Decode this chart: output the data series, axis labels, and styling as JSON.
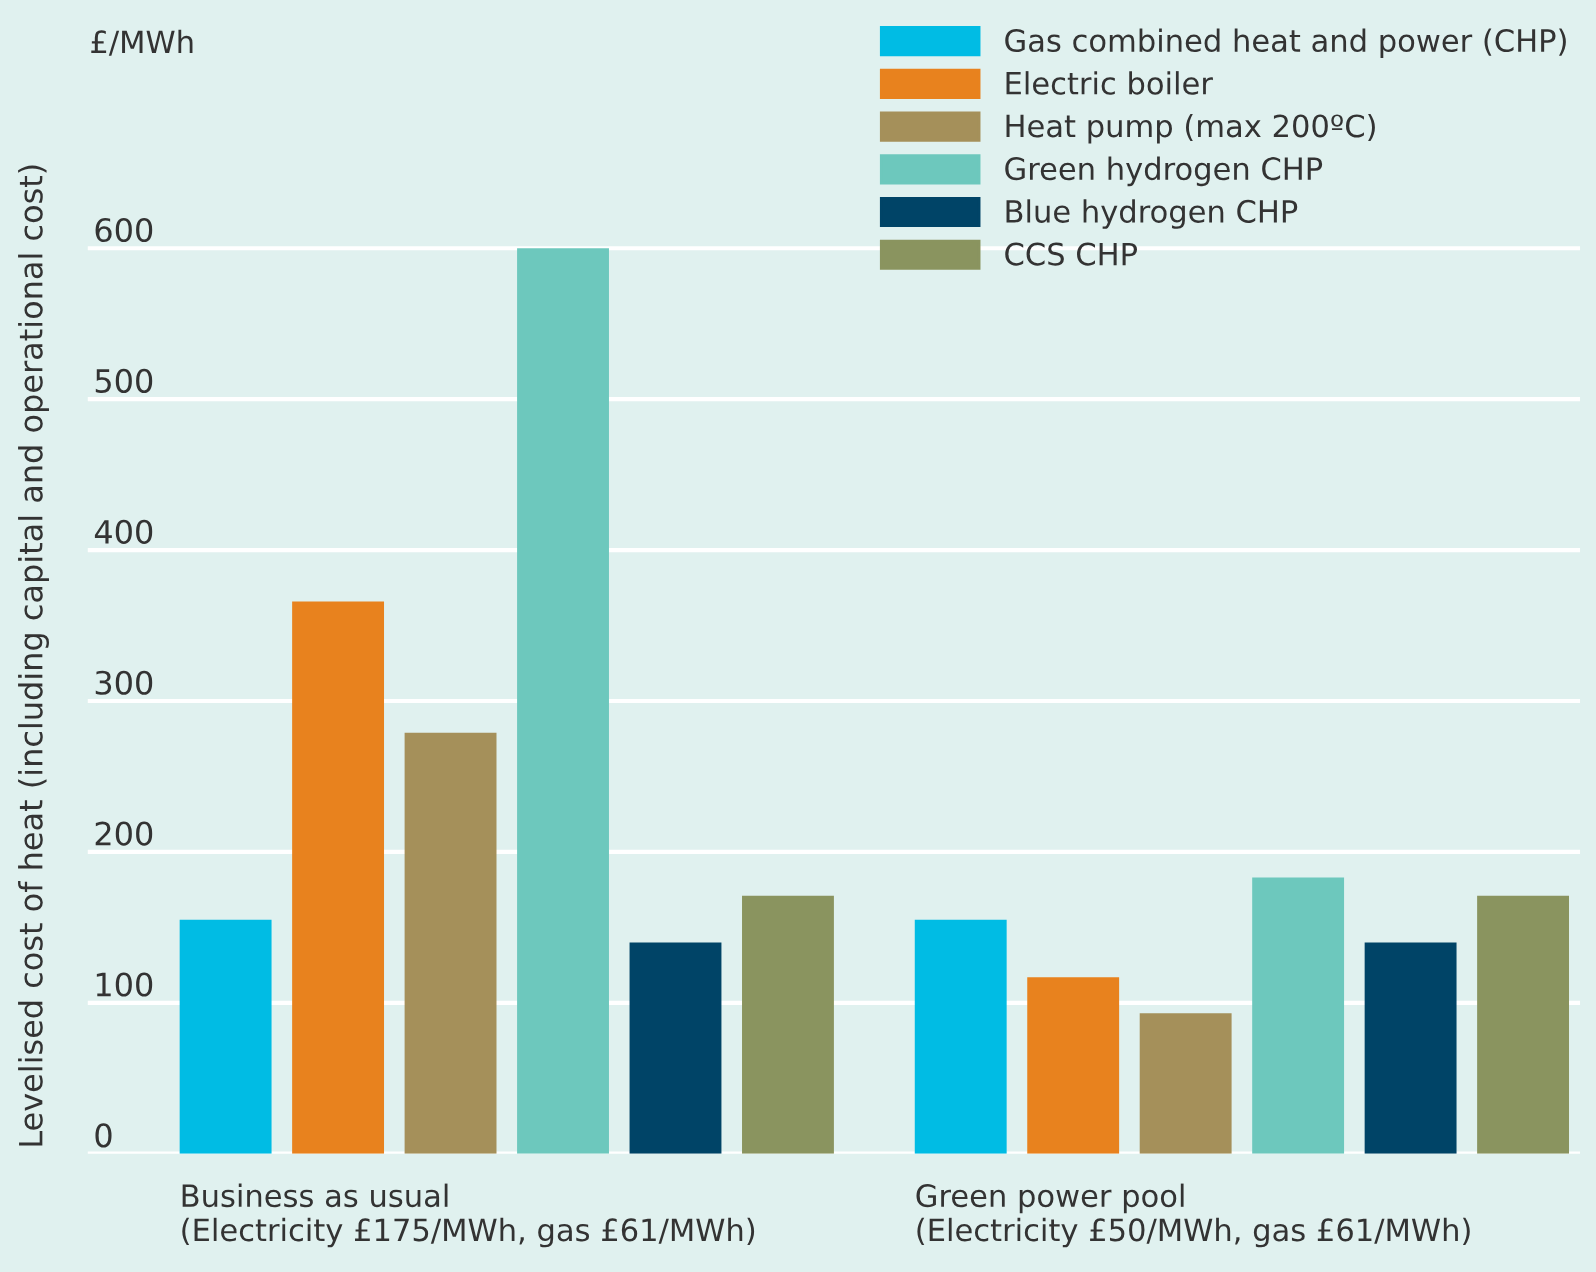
{
  "chart_data": {
    "type": "bar",
    "ylabel": "Levelised cost of heat (including capital and operational cost)",
    "annotations": [
      "£/MWh"
    ],
    "categories": [
      "Business as usual\n(Electricity £175/MWh, gas £61/MWh)",
      "Green power pool\n(Electricity £50/MWh, gas £61/MWh)"
    ],
    "series": [
      {
        "name": "Gas combined heat and power (CHP)",
        "color": "#00bce4",
        "values": [
          155,
          155
        ]
      },
      {
        "name": "Electric boiler",
        "color": "#e8821e",
        "values": [
          366,
          117
        ]
      },
      {
        "name": "Heat pump (max 200ºC)",
        "color": "#a5905a",
        "values": [
          279,
          93
        ]
      },
      {
        "name": "Green hydrogen CHP",
        "color": "#6dc8bd",
        "values": [
          600,
          183
        ]
      },
      {
        "name": "Blue hydrogen CHP",
        "color": "#004467",
        "values": [
          140,
          140
        ]
      },
      {
        "name": "CCS CHP",
        "color": "#8a945f",
        "values": [
          171,
          171
        ]
      }
    ],
    "ylim": [
      0,
      660
    ],
    "yticks": [
      0,
      100,
      200,
      300,
      400,
      500,
      600
    ],
    "grid": "y",
    "legend": "top right"
  }
}
